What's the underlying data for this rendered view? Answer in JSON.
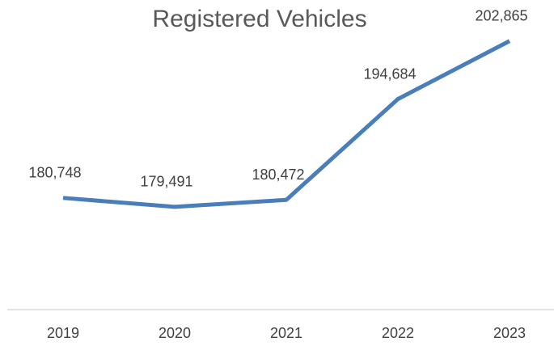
{
  "chart_data": {
    "type": "line",
    "title": "Registered Vehicles",
    "categories": [
      "2019",
      "2020",
      "2021",
      "2022",
      "2023"
    ],
    "series": [
      {
        "name": "Registered Vehicles",
        "color": "#4a7ebb",
        "values": [
          180748,
          179491,
          180472,
          194684,
          202865
        ],
        "value_labels": [
          "180,748",
          "179,491",
          "180,472",
          "194,684",
          "202,865"
        ]
      }
    ],
    "ylim": [
      165000,
      205000
    ]
  }
}
